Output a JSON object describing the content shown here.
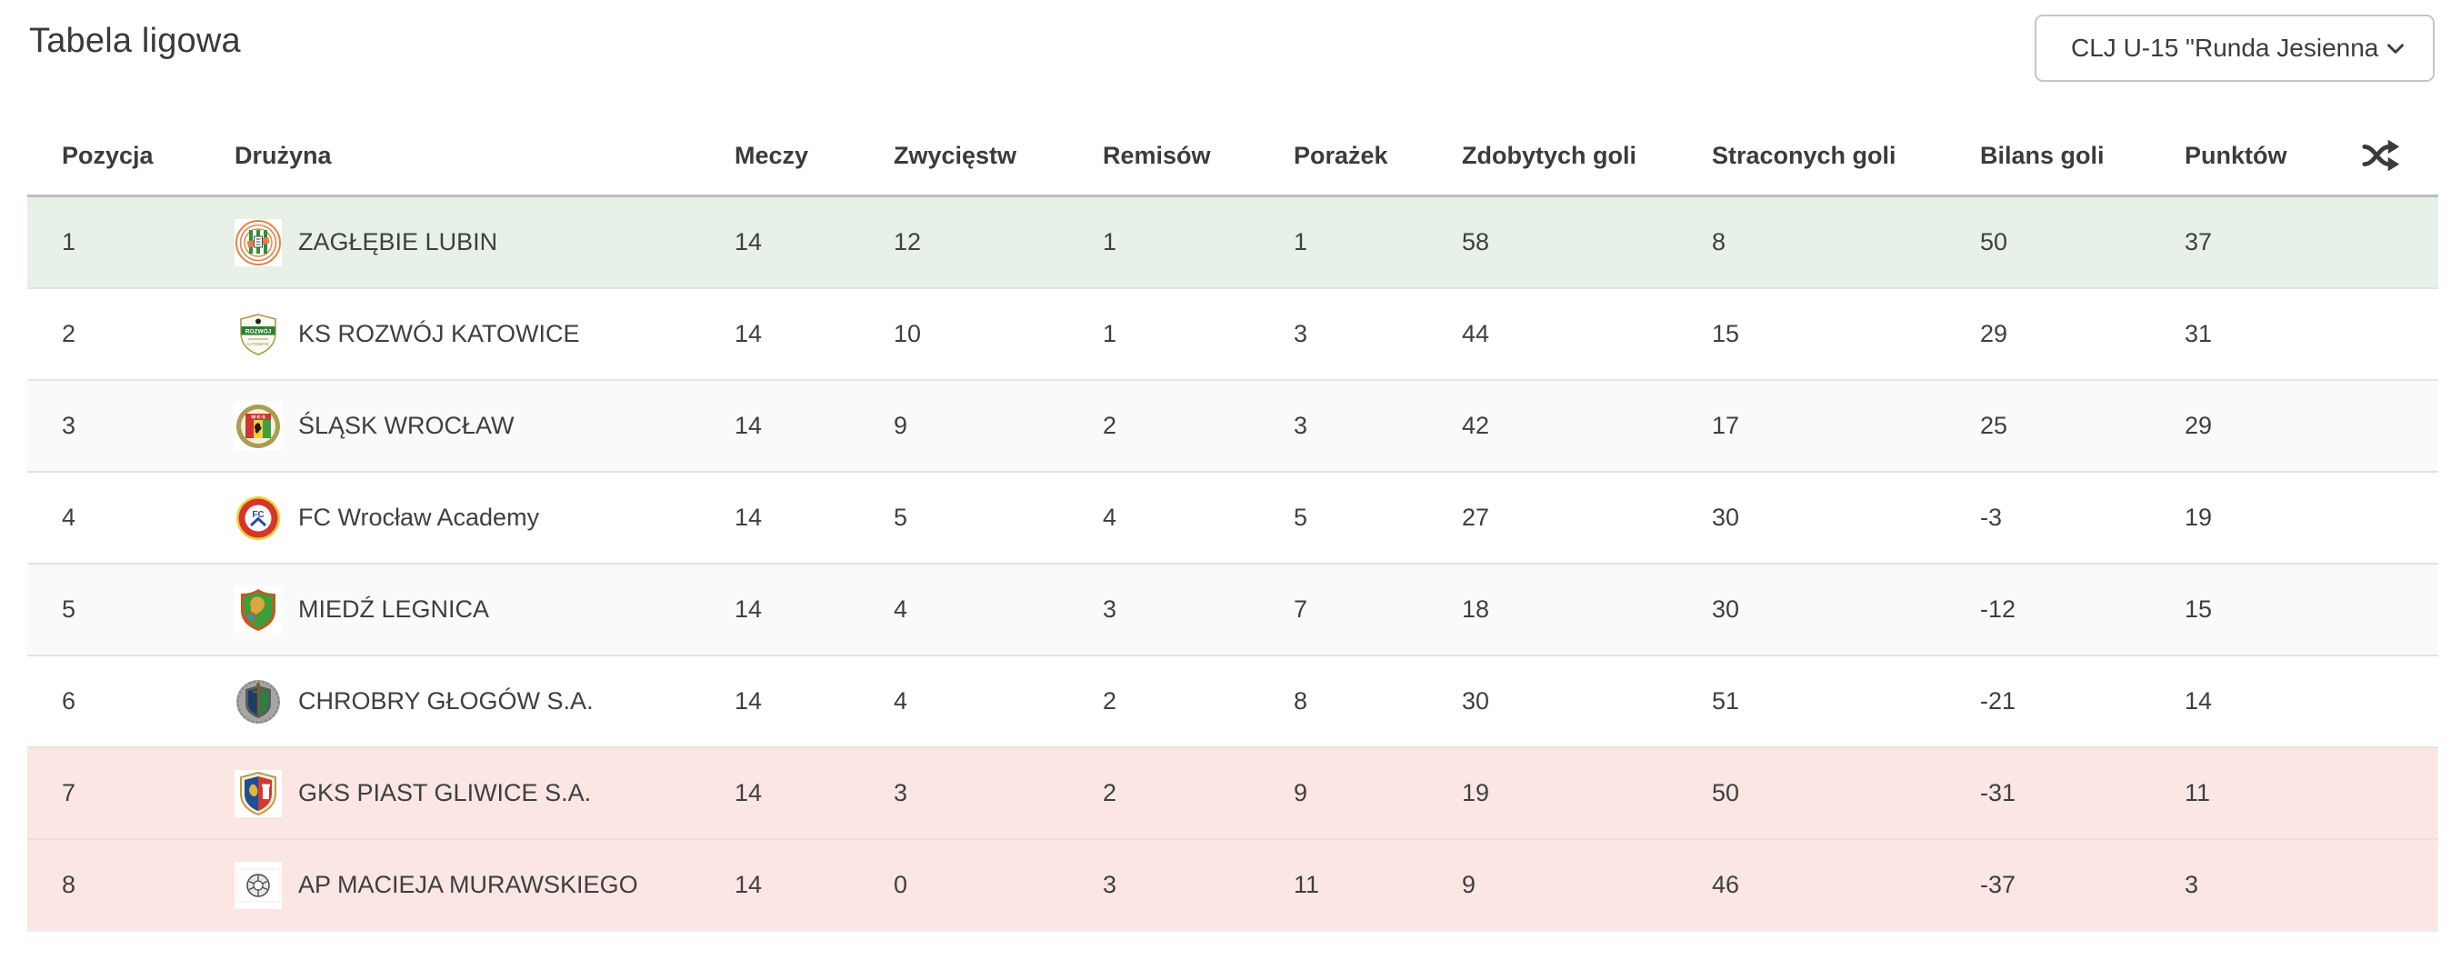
{
  "page": {
    "title": "Tabela ligowa"
  },
  "league_select": {
    "value": "CLJ U-15 \"Runda Jesienna G…",
    "icon": "chevron-down"
  },
  "table": {
    "columns": [
      "Pozycja",
      "Drużyna",
      "Meczy",
      "Zwycięstw",
      "Remisów",
      "Porażek",
      "Zdobytych goli",
      "Straconych goli",
      "Bilans goli",
      "Punktów"
    ],
    "header_icon": "shuffle",
    "rows": [
      {
        "position": "1",
        "team": "ZAGŁĘBIE LUBIN",
        "badge": "zaglebie-lubin",
        "matches": "14",
        "wins": "12",
        "draws": "1",
        "losses": "1",
        "goals_for": "58",
        "goals_against": "8",
        "goal_balance": "50",
        "points": "37",
        "highlight": "promotion"
      },
      {
        "position": "2",
        "team": "KS ROZWÓJ KATOWICE",
        "badge": "rozwoj-katowice",
        "matches": "14",
        "wins": "10",
        "draws": "1",
        "losses": "3",
        "goals_for": "44",
        "goals_against": "15",
        "goal_balance": "29",
        "points": "31",
        "highlight": "none"
      },
      {
        "position": "3",
        "team": "ŚLĄSK WROCŁAW",
        "badge": "slask-wroclaw",
        "matches": "14",
        "wins": "9",
        "draws": "2",
        "losses": "3",
        "goals_for": "42",
        "goals_against": "17",
        "goal_balance": "25",
        "points": "29",
        "highlight": "none"
      },
      {
        "position": "4",
        "team": "FC Wrocław Academy",
        "badge": "fc-wroclaw-academy",
        "matches": "14",
        "wins": "5",
        "draws": "4",
        "losses": "5",
        "goals_for": "27",
        "goals_against": "30",
        "goal_balance": "-3",
        "points": "19",
        "highlight": "none"
      },
      {
        "position": "5",
        "team": "MIEDŹ LEGNICA",
        "badge": "miedz-legnica",
        "matches": "14",
        "wins": "4",
        "draws": "3",
        "losses": "7",
        "goals_for": "18",
        "goals_against": "30",
        "goal_balance": "-12",
        "points": "15",
        "highlight": "none"
      },
      {
        "position": "6",
        "team": "CHROBRY GŁOGÓW S.A.",
        "badge": "chrobry-glogow",
        "matches": "14",
        "wins": "4",
        "draws": "2",
        "losses": "8",
        "goals_for": "30",
        "goals_against": "51",
        "goal_balance": "-21",
        "points": "14",
        "highlight": "none"
      },
      {
        "position": "7",
        "team": "GKS PIAST GLIWICE S.A.",
        "badge": "piast-gliwice",
        "matches": "14",
        "wins": "3",
        "draws": "2",
        "losses": "9",
        "goals_for": "19",
        "goals_against": "50",
        "goal_balance": "-31",
        "points": "11",
        "highlight": "relegation"
      },
      {
        "position": "8",
        "team": "AP MACIEJA MURAWSKIEGO",
        "badge": "ap-murawskiego",
        "matches": "14",
        "wins": "0",
        "draws": "3",
        "losses": "11",
        "goals_for": "9",
        "goals_against": "46",
        "goal_balance": "-37",
        "points": "3",
        "highlight": "relegation"
      }
    ]
  },
  "colors": {
    "promotion_row": "#e7f1e7",
    "relegation_row": "#fbe6e4",
    "zebra_row": "#fafafa",
    "row_border": "#e3e3e3",
    "header_top_border": "#bdbdbd",
    "text": "#3d3d3d"
  }
}
